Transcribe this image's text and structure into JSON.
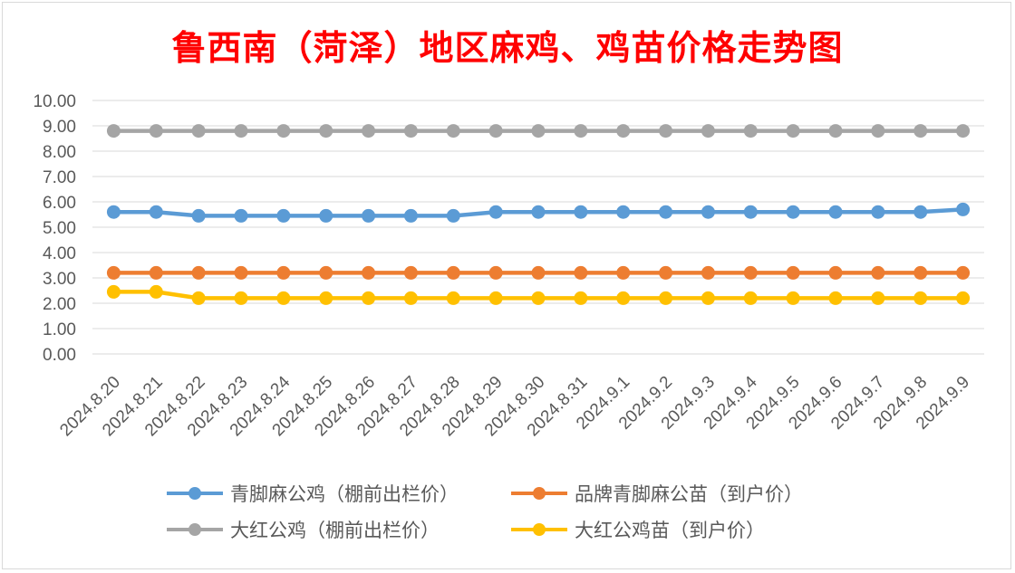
{
  "chart_data": {
    "type": "line",
    "title": "鲁西南（菏泽）地区麻鸡、鸡苗价格走势图",
    "xlabel": "",
    "ylabel": "",
    "ylim": [
      0,
      10
    ],
    "yticks": [
      "0.00",
      "1.00",
      "2.00",
      "3.00",
      "4.00",
      "5.00",
      "6.00",
      "7.00",
      "8.00",
      "9.00",
      "10.00"
    ],
    "grid": true,
    "legend_position": "bottom",
    "categories": [
      "2024.8.20",
      "2024.8.21",
      "2024.8.22",
      "2024.8.23",
      "2024.8.24",
      "2024.8.25",
      "2024.8.26",
      "2024.8.27",
      "2024.8.28",
      "2024.8.29",
      "2024.8.30",
      "2024.8.31",
      "2024.9.1",
      "2024.9.2",
      "2024.9.3",
      "2024.9.4",
      "2024.9.5",
      "2024.9.6",
      "2024.9.7",
      "2024.9.8",
      "2024.9.9"
    ],
    "series": [
      {
        "name": "青脚麻公鸡（棚前出栏价）",
        "color": "#5b9bd5",
        "values": [
          5.6,
          5.6,
          5.45,
          5.45,
          5.45,
          5.45,
          5.45,
          5.45,
          5.45,
          5.6,
          5.6,
          5.6,
          5.6,
          5.6,
          5.6,
          5.6,
          5.6,
          5.6,
          5.6,
          5.6,
          5.7
        ]
      },
      {
        "name": "品牌青脚麻公苗（到户价）",
        "color": "#ed7d31",
        "values": [
          3.2,
          3.2,
          3.2,
          3.2,
          3.2,
          3.2,
          3.2,
          3.2,
          3.2,
          3.2,
          3.2,
          3.2,
          3.2,
          3.2,
          3.2,
          3.2,
          3.2,
          3.2,
          3.2,
          3.2,
          3.2
        ]
      },
      {
        "name": "大红公鸡（棚前出栏价）",
        "color": "#a5a5a5",
        "values": [
          8.8,
          8.8,
          8.8,
          8.8,
          8.8,
          8.8,
          8.8,
          8.8,
          8.8,
          8.8,
          8.8,
          8.8,
          8.8,
          8.8,
          8.8,
          8.8,
          8.8,
          8.8,
          8.8,
          8.8,
          8.8
        ]
      },
      {
        "name": "大红公鸡苗（到户价）",
        "color": "#ffc000",
        "values": [
          2.45,
          2.45,
          2.2,
          2.2,
          2.2,
          2.2,
          2.2,
          2.2,
          2.2,
          2.2,
          2.2,
          2.2,
          2.2,
          2.2,
          2.2,
          2.2,
          2.2,
          2.2,
          2.2,
          2.2,
          2.2
        ]
      }
    ]
  }
}
